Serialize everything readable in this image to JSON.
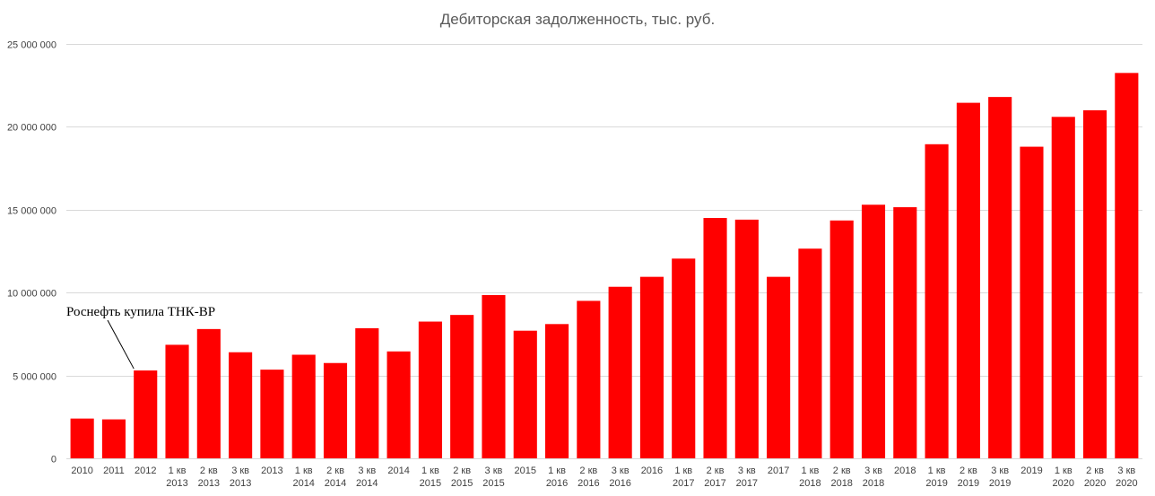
{
  "chart_data": {
    "type": "bar",
    "title": "Дебиторская задолженность, тыс. руб.",
    "xlabel": "",
    "ylabel": "",
    "ylim": [
      0,
      25000000
    ],
    "yticks": [
      0,
      5000000,
      10000000,
      15000000,
      20000000,
      25000000
    ],
    "ytick_labels": [
      "0",
      "5 000 000",
      "10 000 000",
      "15 000 000",
      "20 000 000",
      "25 000 000"
    ],
    "grid": true,
    "legend": "none",
    "bar_color": "#ff0000",
    "categories": [
      [
        "2010"
      ],
      [
        "2011"
      ],
      [
        "2012"
      ],
      [
        "1 кв",
        "2013"
      ],
      [
        "2 кв",
        "2013"
      ],
      [
        "3 кв",
        "2013"
      ],
      [
        "2013"
      ],
      [
        "1 кв",
        "2014"
      ],
      [
        "2 кв",
        "2014"
      ],
      [
        "3 кв",
        "2014"
      ],
      [
        "2014"
      ],
      [
        "1 кв",
        "2015"
      ],
      [
        "2 кв",
        "2015"
      ],
      [
        "3 кв",
        "2015"
      ],
      [
        "2015"
      ],
      [
        "1 кв",
        "2016"
      ],
      [
        "2 кв",
        "2016"
      ],
      [
        "3 кв",
        "2016"
      ],
      [
        "2016"
      ],
      [
        "1 кв",
        "2017"
      ],
      [
        "2 кв",
        "2017"
      ],
      [
        "3 кв",
        "2017"
      ],
      [
        "2017"
      ],
      [
        "1 кв",
        "2018"
      ],
      [
        "2 кв",
        "2018"
      ],
      [
        "3 кв",
        "2018"
      ],
      [
        "2018"
      ],
      [
        "1 кв",
        "2019"
      ],
      [
        "2 кв",
        "2019"
      ],
      [
        "3 кв",
        "2019"
      ],
      [
        "2019"
      ],
      [
        "1 кв",
        "2020"
      ],
      [
        "2 кв",
        "2020"
      ],
      [
        "3 кв",
        "2020"
      ]
    ],
    "values": [
      2400000,
      2350000,
      5300000,
      6850000,
      7800000,
      6400000,
      5350000,
      6250000,
      5750000,
      7850000,
      6450000,
      8250000,
      8650000,
      9850000,
      7700000,
      8100000,
      9500000,
      10350000,
      10950000,
      12050000,
      14500000,
      14400000,
      10950000,
      12650000,
      14350000,
      15300000,
      15150000,
      18950000,
      21450000,
      21800000,
      18800000,
      20600000,
      21000000,
      23250000
    ],
    "annotations": [
      {
        "text": "Роснефть купила ТНК-ВР",
        "category_index": 2
      }
    ]
  }
}
